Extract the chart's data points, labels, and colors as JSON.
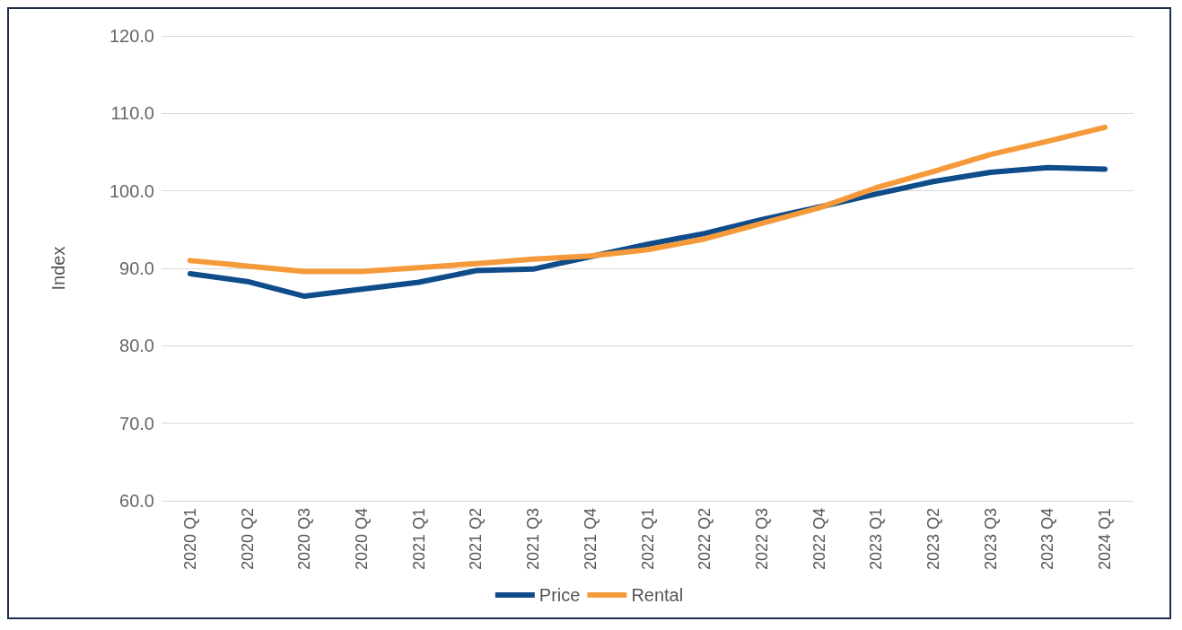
{
  "chart_data": {
    "type": "line",
    "ylabel": "Index",
    "categories": [
      "2020 Q1",
      "2020 Q2",
      "2020 Q3",
      "2020 Q4",
      "2021 Q1",
      "2021 Q2",
      "2021 Q3",
      "2021 Q4",
      "2022 Q1",
      "2022 Q2",
      "2022 Q3",
      "2022 Q4",
      "2023 Q1",
      "2023 Q2",
      "2023 Q3",
      "2023 Q4",
      "2024 Q1"
    ],
    "series": [
      {
        "name": "Price",
        "color": "#0f4c8a",
        "values": [
          89.3,
          88.3,
          86.4,
          87.3,
          88.2,
          89.7,
          89.9,
          91.5,
          93.1,
          94.5,
          96.3,
          97.9,
          99.6,
          101.2,
          102.4,
          103.0,
          102.8
        ]
      },
      {
        "name": "Rental",
        "color": "#f59a3a",
        "values": [
          91.0,
          90.3,
          89.6,
          89.6,
          90.1,
          90.6,
          91.2,
          91.6,
          92.4,
          93.8,
          95.8,
          97.8,
          100.4,
          102.5,
          104.7,
          106.4,
          108.2
        ]
      }
    ],
    "ylim": [
      60,
      120
    ],
    "yticks": [
      {
        "value": 60,
        "label": "60.0"
      },
      {
        "value": 70,
        "label": "70.0"
      },
      {
        "value": 80,
        "label": "80.0"
      },
      {
        "value": 90,
        "label": "90.0"
      },
      {
        "value": 100,
        "label": "100.0"
      },
      {
        "value": 110,
        "label": "110.0"
      },
      {
        "value": 120,
        "label": "120.0"
      }
    ],
    "grid": "y",
    "legend": "bottom",
    "marker": "none",
    "line_style": "solid"
  }
}
